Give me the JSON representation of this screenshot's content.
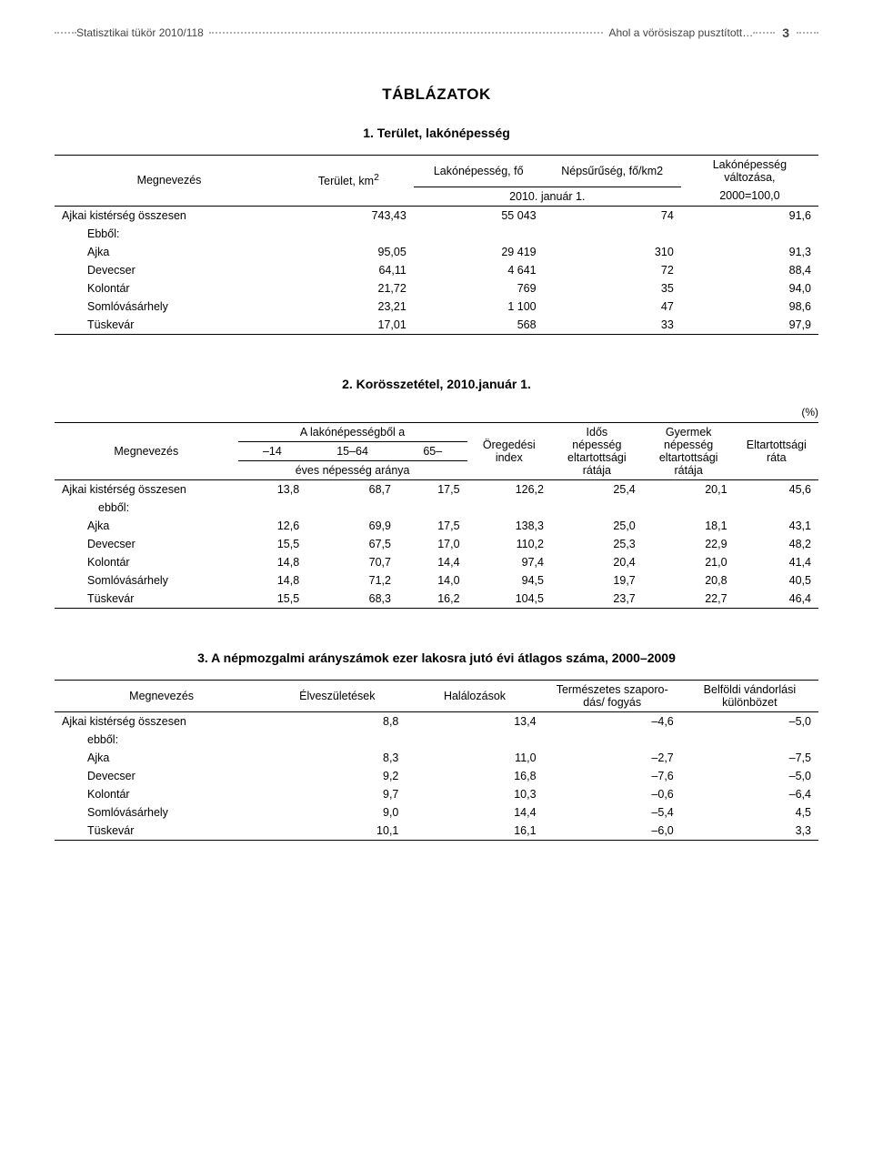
{
  "header": {
    "left": "Statisztikai tükör 2010/118",
    "right": "Ahol a vörösiszap pusztított…",
    "page_num": "3"
  },
  "section_title": "TÁBLÁZATOK",
  "table1": {
    "caption": "1. Terület, lakónépesség",
    "col_megnevezes": "Megnevezés",
    "col_terulet_html": "Terület, km<sup>2</sup>",
    "col_lakonepesseg": "Lakónépesség, fő",
    "col_nepsuruseg": "Népsűrűség, fő/km2",
    "col_valtozas_l1": "Lakónépesség",
    "col_valtozas_l2": "változása,",
    "sub_date": "2010. január 1.",
    "sub_index": "2000=100,0",
    "rows": [
      {
        "label": "Ajkai kistérség összesen",
        "indent": 0,
        "c1": "743,43",
        "c2": "55 043",
        "c3": "74",
        "c4": "91,6"
      },
      {
        "label": "Ebből:",
        "indent": 1,
        "c1": "",
        "c2": "",
        "c3": "",
        "c4": ""
      },
      {
        "label": "Ajka",
        "indent": 1,
        "c1": "95,05",
        "c2": "29 419",
        "c3": "310",
        "c4": "91,3"
      },
      {
        "label": "Devecser",
        "indent": 1,
        "c1": "64,11",
        "c2": "4 641",
        "c3": "72",
        "c4": "88,4"
      },
      {
        "label": "Kolontár",
        "indent": 1,
        "c1": "21,72",
        "c2": "769",
        "c3": "35",
        "c4": "94,0"
      },
      {
        "label": "Somlóvásárhely",
        "indent": 1,
        "c1": "23,21",
        "c2": "1 100",
        "c3": "47",
        "c4": "98,6"
      },
      {
        "label": "Tüskevár",
        "indent": 1,
        "c1": "17,01",
        "c2": "568",
        "c3": "33",
        "c4": "97,9"
      }
    ]
  },
  "table2": {
    "caption": "2. Korösszetétel, 2010.január 1.",
    "unit": "(%)",
    "col_megnevezes": "Megnevezés",
    "col_group_a": "A lakónépességből a",
    "col_14": "–14",
    "col_1564": "15–64",
    "col_65": "65–",
    "col_eves": "éves népesség aránya",
    "col_oreg_l1": "Öregedési",
    "col_oreg_l2": "index",
    "col_idos_l1": "Idős",
    "col_idos_l2": "népesség",
    "col_idos_l3": "eltartottsági",
    "col_idos_l4": "rátája",
    "col_gyer_l1": "Gyermek",
    "col_gyer_l2": "népesség",
    "col_gyer_l3": "eltartottsági",
    "col_gyer_l4": "rátája",
    "col_elt_l1": "Eltartottsági",
    "col_elt_l2": "ráta",
    "rows": [
      {
        "label": "Ajkai kistérség összesen",
        "indent": 0,
        "c1": "13,8",
        "c2": "68,7",
        "c3": "17,5",
        "c4": "126,2",
        "c5": "25,4",
        "c6": "20,1",
        "c7": "45,6"
      },
      {
        "label": "ebből:",
        "indent": 2,
        "c1": "",
        "c2": "",
        "c3": "",
        "c4": "",
        "c5": "",
        "c6": "",
        "c7": ""
      },
      {
        "label": "Ajka",
        "indent": 1,
        "c1": "12,6",
        "c2": "69,9",
        "c3": "17,5",
        "c4": "138,3",
        "c5": "25,0",
        "c6": "18,1",
        "c7": "43,1"
      },
      {
        "label": "Devecser",
        "indent": 1,
        "c1": "15,5",
        "c2": "67,5",
        "c3": "17,0",
        "c4": "110,2",
        "c5": "25,3",
        "c6": "22,9",
        "c7": "48,2"
      },
      {
        "label": "Kolontár",
        "indent": 1,
        "c1": "14,8",
        "c2": "70,7",
        "c3": "14,4",
        "c4": "97,4",
        "c5": "20,4",
        "c6": "21,0",
        "c7": "41,4"
      },
      {
        "label": "Somlóvásárhely",
        "indent": 1,
        "c1": "14,8",
        "c2": "71,2",
        "c3": "14,0",
        "c4": "94,5",
        "c5": "19,7",
        "c6": "20,8",
        "c7": "40,5"
      },
      {
        "label": "Tüskevár",
        "indent": 1,
        "c1": "15,5",
        "c2": "68,3",
        "c3": "16,2",
        "c4": "104,5",
        "c5": "23,7",
        "c6": "22,7",
        "c7": "46,4"
      }
    ]
  },
  "table3": {
    "caption": "3. A népmozgalmi arányszámok ezer lakosra jutó évi átlagos száma, 2000–2009",
    "col_megnevezes": "Megnevezés",
    "col_elve": "Élveszületések",
    "col_halal": "Halálozások",
    "col_term_l1": "Természetes szaporo-",
    "col_term_l2": "dás/ fogyás",
    "col_belf_l1": "Belföldi vándorlási",
    "col_belf_l2": "különbözet",
    "rows": [
      {
        "label": "Ajkai kistérség összesen",
        "indent": 0,
        "c1": "8,8",
        "c2": "13,4",
        "c3": "–4,6",
        "c4": "–5,0"
      },
      {
        "label": "ebből:",
        "indent": 1,
        "c1": "",
        "c2": "",
        "c3": "",
        "c4": ""
      },
      {
        "label": "Ajka",
        "indent": 1,
        "c1": "8,3",
        "c2": "11,0",
        "c3": "–2,7",
        "c4": "–7,5"
      },
      {
        "label": "Devecser",
        "indent": 1,
        "c1": "9,2",
        "c2": "16,8",
        "c3": "–7,6",
        "c4": "–5,0"
      },
      {
        "label": "Kolontár",
        "indent": 1,
        "c1": "9,7",
        "c2": "10,3",
        "c3": "–0,6",
        "c4": "–6,4"
      },
      {
        "label": "Somlóvásárhely",
        "indent": 1,
        "c1": "9,0",
        "c2": "14,4",
        "c3": "–5,4",
        "c4": "4,5"
      },
      {
        "label": "Tüskevár",
        "indent": 1,
        "c1": "10,1",
        "c2": "16,1",
        "c3": "–6,0",
        "c4": "3,3"
      }
    ]
  }
}
